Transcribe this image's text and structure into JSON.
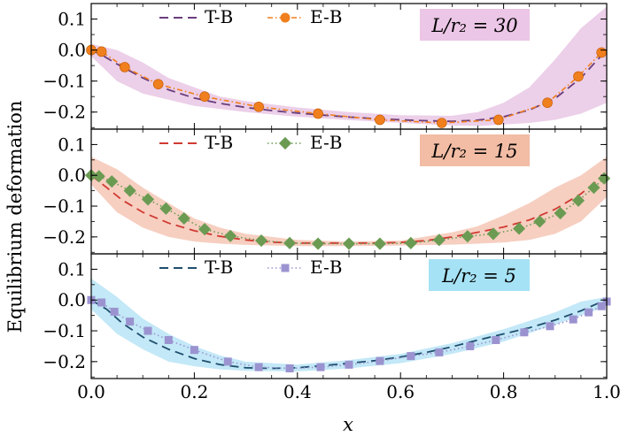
{
  "chart_data": {
    "type": "line",
    "ylabel": "Equilibrium deformation",
    "xlabel": "x",
    "xlim": [
      0,
      1
    ],
    "x_ticks": [
      "0.0",
      "0.2",
      "0.4",
      "0.6",
      "0.8",
      "1.0"
    ],
    "panels": [
      {
        "tag": "L/r₂ = 30",
        "tag_color": "#ecc6e6",
        "band_color": "#dca8d6",
        "ylim": [
          -0.255,
          0.15
        ],
        "y_ticks": [
          "0.1",
          "0.0",
          "−0.1",
          "−0.2"
        ],
        "y_tick_values": [
          0.1,
          0.0,
          -0.1,
          -0.2
        ],
        "legend": [
          "T-B",
          "E-B"
        ],
        "series": [
          {
            "name": "T-B",
            "style": "dashed",
            "color": "#6a3d7c",
            "x": [
              0,
              0.02,
              0.05,
              0.1,
              0.15,
              0.2,
              0.25,
              0.3,
              0.35,
              0.4,
              0.45,
              0.5,
              0.55,
              0.6,
              0.65,
              0.7,
              0.75,
              0.8,
              0.85,
              0.9,
              0.95,
              0.98,
              1.0
            ],
            "y": [
              0.0,
              -0.015,
              -0.045,
              -0.09,
              -0.128,
              -0.155,
              -0.172,
              -0.185,
              -0.195,
              -0.203,
              -0.21,
              -0.216,
              -0.221,
              -0.225,
              -0.228,
              -0.23,
              -0.226,
              -0.215,
              -0.193,
              -0.156,
              -0.09,
              -0.035,
              0.0
            ]
          },
          {
            "name": "E-B",
            "style": "dashdot-markers",
            "color": "#f07f1e",
            "x": [
              0.0,
              0.02,
              0.065,
              0.13,
              0.22,
              0.325,
              0.44,
              0.56,
              0.68,
              0.79,
              0.885,
              0.945,
              0.99
            ],
            "y": [
              0.0,
              -0.005,
              -0.055,
              -0.11,
              -0.15,
              -0.183,
              -0.205,
              -0.225,
              -0.235,
              -0.225,
              -0.17,
              -0.085,
              -0.008
            ]
          }
        ],
        "band": {
          "x": [
            0,
            0.05,
            0.1,
            0.15,
            0.2,
            0.25,
            0.3,
            0.4,
            0.5,
            0.6,
            0.7,
            0.75,
            0.8,
            0.85,
            0.9,
            0.95,
            1.0
          ],
          "upper": [
            0.02,
            0.0,
            -0.04,
            -0.09,
            -0.12,
            -0.15,
            -0.165,
            -0.185,
            -0.2,
            -0.21,
            -0.212,
            -0.2,
            -0.17,
            -0.12,
            -0.03,
            0.07,
            0.14
          ],
          "lower": [
            -0.02,
            -0.1,
            -0.14,
            -0.16,
            -0.18,
            -0.19,
            -0.2,
            -0.215,
            -0.226,
            -0.235,
            -0.243,
            -0.245,
            -0.24,
            -0.235,
            -0.225,
            -0.205,
            -0.17
          ]
        }
      },
      {
        "tag": "L/r₂ = 15",
        "tag_color": "#f2bca5",
        "band_color": "#eea88e",
        "ylim": [
          -0.255,
          0.15
        ],
        "y_ticks": [
          "0.1",
          "0.0",
          "−0.1",
          "−0.2"
        ],
        "y_tick_values": [
          0.1,
          0.0,
          -0.1,
          -0.2
        ],
        "legend": [
          "T-B",
          "E-B"
        ],
        "series": [
          {
            "name": "T-B",
            "style": "dashed",
            "color": "#d03a32",
            "x": [
              0,
              0.03,
              0.06,
              0.1,
              0.15,
              0.2,
              0.25,
              0.3,
              0.35,
              0.4,
              0.45,
              0.5,
              0.55,
              0.6,
              0.65,
              0.7,
              0.75,
              0.8,
              0.85,
              0.9,
              0.95,
              0.98,
              1.0
            ],
            "y": [
              0.0,
              -0.04,
              -0.08,
              -0.12,
              -0.155,
              -0.18,
              -0.198,
              -0.21,
              -0.217,
              -0.22,
              -0.22,
              -0.22,
              -0.22,
              -0.218,
              -0.212,
              -0.2,
              -0.185,
              -0.168,
              -0.145,
              -0.11,
              -0.06,
              -0.02,
              0.0
            ]
          },
          {
            "name": "E-B",
            "style": "dotted-markers",
            "color": "#6b9b53",
            "x": [
              0.0,
              0.015,
              0.04,
              0.075,
              0.11,
              0.145,
              0.18,
              0.22,
              0.27,
              0.33,
              0.385,
              0.44,
              0.5,
              0.56,
              0.62,
              0.675,
              0.73,
              0.78,
              0.83,
              0.87,
              0.91,
              0.945,
              0.975,
              0.995
            ],
            "y": [
              0.0,
              -0.003,
              -0.02,
              -0.05,
              -0.078,
              -0.108,
              -0.14,
              -0.175,
              -0.197,
              -0.212,
              -0.22,
              -0.222,
              -0.222,
              -0.222,
              -0.22,
              -0.21,
              -0.198,
              -0.19,
              -0.173,
              -0.15,
              -0.123,
              -0.082,
              -0.04,
              -0.01
            ]
          }
        ],
        "band": {
          "x": [
            0,
            0.05,
            0.1,
            0.15,
            0.2,
            0.25,
            0.3,
            0.4,
            0.5,
            0.6,
            0.7,
            0.75,
            0.8,
            0.85,
            0.9,
            0.95,
            1.0
          ],
          "upper": [
            0.06,
            0.02,
            -0.04,
            -0.09,
            -0.14,
            -0.17,
            -0.19,
            -0.21,
            -0.215,
            -0.212,
            -0.185,
            -0.165,
            -0.13,
            -0.09,
            -0.04,
            0.0,
            0.06
          ],
          "lower": [
            -0.03,
            -0.12,
            -0.17,
            -0.2,
            -0.215,
            -0.222,
            -0.226,
            -0.23,
            -0.23,
            -0.228,
            -0.225,
            -0.222,
            -0.218,
            -0.21,
            -0.19,
            -0.15,
            -0.07
          ]
        }
      },
      {
        "tag": "L/r₂ = 5",
        "tag_color": "#a6e2f5",
        "band_color": "#92d6f0",
        "ylim": [
          -0.255,
          0.15
        ],
        "y_ticks": [
          "0.1",
          "0.0",
          "−0.1",
          "−0.2"
        ],
        "y_tick_values": [
          0.1,
          0.0,
          -0.1,
          -0.2
        ],
        "legend": [
          "T-B",
          "E-B"
        ],
        "series": [
          {
            "name": "T-B",
            "style": "dashed",
            "color": "#1f4e6e",
            "x": [
              0,
              0.03,
              0.06,
              0.1,
              0.15,
              0.2,
              0.25,
              0.3,
              0.35,
              0.4,
              0.45,
              0.5,
              0.55,
              0.6,
              0.65,
              0.7,
              0.75,
              0.8,
              0.85,
              0.9,
              0.95,
              0.98,
              1.0
            ],
            "y": [
              0.0,
              -0.03,
              -0.075,
              -0.12,
              -0.16,
              -0.19,
              -0.21,
              -0.22,
              -0.222,
              -0.22,
              -0.213,
              -0.205,
              -0.197,
              -0.185,
              -0.17,
              -0.152,
              -0.13,
              -0.11,
              -0.09,
              -0.065,
              -0.035,
              -0.013,
              0.0
            ]
          },
          {
            "name": "E-B",
            "style": "dotted-markers",
            "color": "#9b93d0",
            "x": [
              0.0,
              0.02,
              0.045,
              0.075,
              0.11,
              0.15,
              0.2,
              0.265,
              0.325,
              0.385,
              0.445,
              0.5,
              0.56,
              0.62,
              0.675,
              0.735,
              0.785,
              0.84,
              0.89,
              0.935,
              0.965,
              0.99,
              1.0
            ],
            "y": [
              0.0,
              -0.008,
              -0.038,
              -0.07,
              -0.1,
              -0.13,
              -0.162,
              -0.2,
              -0.218,
              -0.222,
              -0.218,
              -0.21,
              -0.198,
              -0.182,
              -0.17,
              -0.15,
              -0.13,
              -0.105,
              -0.085,
              -0.063,
              -0.04,
              -0.02,
              -0.005
            ]
          }
        ],
        "band": {
          "x": [
            0,
            0.05,
            0.1,
            0.15,
            0.2,
            0.25,
            0.3,
            0.4,
            0.5,
            0.6,
            0.7,
            0.8,
            0.9,
            0.95,
            1.0
          ],
          "upper": [
            0.07,
            0.01,
            -0.06,
            -0.11,
            -0.15,
            -0.18,
            -0.2,
            -0.21,
            -0.195,
            -0.175,
            -0.14,
            -0.095,
            -0.04,
            -0.005,
            0.01
          ],
          "lower": [
            -0.03,
            -0.11,
            -0.16,
            -0.2,
            -0.215,
            -0.225,
            -0.23,
            -0.232,
            -0.222,
            -0.205,
            -0.175,
            -0.135,
            -0.08,
            -0.05,
            -0.02
          ]
        }
      }
    ]
  }
}
